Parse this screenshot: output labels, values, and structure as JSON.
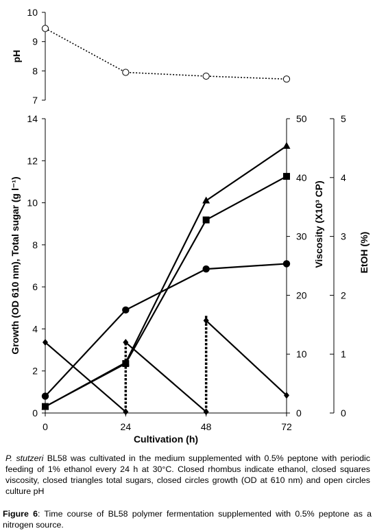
{
  "chart_data": [
    {
      "type": "line",
      "ylabel": "pH",
      "ylim": [
        7,
        10
      ],
      "yticks": [
        "7",
        "8",
        "9",
        "10"
      ],
      "x": [
        0,
        24,
        48,
        72
      ],
      "grid": false,
      "series": [
        {
          "values": [
            9.45,
            7.95,
            7.82,
            7.72
          ],
          "marker": "open-circle",
          "line": "dotted"
        }
      ]
    },
    {
      "type": "line",
      "xlabel": "Cultivation (h)",
      "xticks": [
        "0",
        "24",
        "48",
        "72"
      ],
      "ylabel_left": "Growth (OD 610 nm), Total sugar (g l⁻¹)",
      "ylim_left": [
        0,
        14
      ],
      "yticks_left": [
        "0",
        "2",
        "4",
        "6",
        "8",
        "10",
        "12",
        "14"
      ],
      "ylabel_right1": "Viscosity (X10³ CP)",
      "ylim_right1": [
        0,
        50
      ],
      "yticks_right1": [
        "0",
        "10",
        "20",
        "30",
        "40",
        "50"
      ],
      "ylabel_right2": "EtOH (%)",
      "ylim_right2": [
        0,
        5
      ],
      "yticks_right2": [
        "0",
        "1",
        "2",
        "3",
        "4",
        "5"
      ],
      "grid": false,
      "series": [
        {
          "values": [
            0.8,
            4.9,
            6.85,
            7.1
          ],
          "marker": "filled-circle",
          "axis": "left"
        },
        {
          "values": [
            0.3,
            2.4,
            10.1,
            12.7
          ],
          "marker": "filled-triangle",
          "axis": "left"
        },
        {
          "values": [
            1.1,
            8.4,
            32.8,
            40.2
          ],
          "marker": "filled-square",
          "axis": "right1"
        },
        {
          "segments": [
            [
              [
                0,
                1.2
              ],
              [
                24,
                0.02
              ]
            ],
            [
              [
                24,
                1.2
              ],
              [
                48,
                0.02
              ]
            ],
            [
              [
                48,
                1.57
              ],
              [
                72,
                0.3
              ]
            ]
          ],
          "marker": "filled-rhombus",
          "axis": "right2"
        }
      ],
      "feeding_lines": [
        {
          "x": 24,
          "y_range": [
            0.02,
            1.2
          ],
          "axis": "right2",
          "style": "dashed"
        },
        {
          "x": 48,
          "y_range": [
            0.02,
            1.65
          ],
          "axis": "right2",
          "style": "dashed"
        }
      ]
    }
  ],
  "caption": {
    "species": "P. stutzeri",
    "body": " BL58 was cultivated in the medium supplemented with 0.5% peptone with periodic feeding of 1% ethanol every 24 h at 30°C. Closed rhombus indicate ethanol, closed squares viscosity, closed triangles total sugars, closed circles growth (OD at 610 nm) and open circles culture pH"
  },
  "figure_caption": {
    "label": "Figure 6",
    "text": ": Time course of BL58 polymer fermentation supplemented with 0.5% peptone as a nitrogen source."
  }
}
